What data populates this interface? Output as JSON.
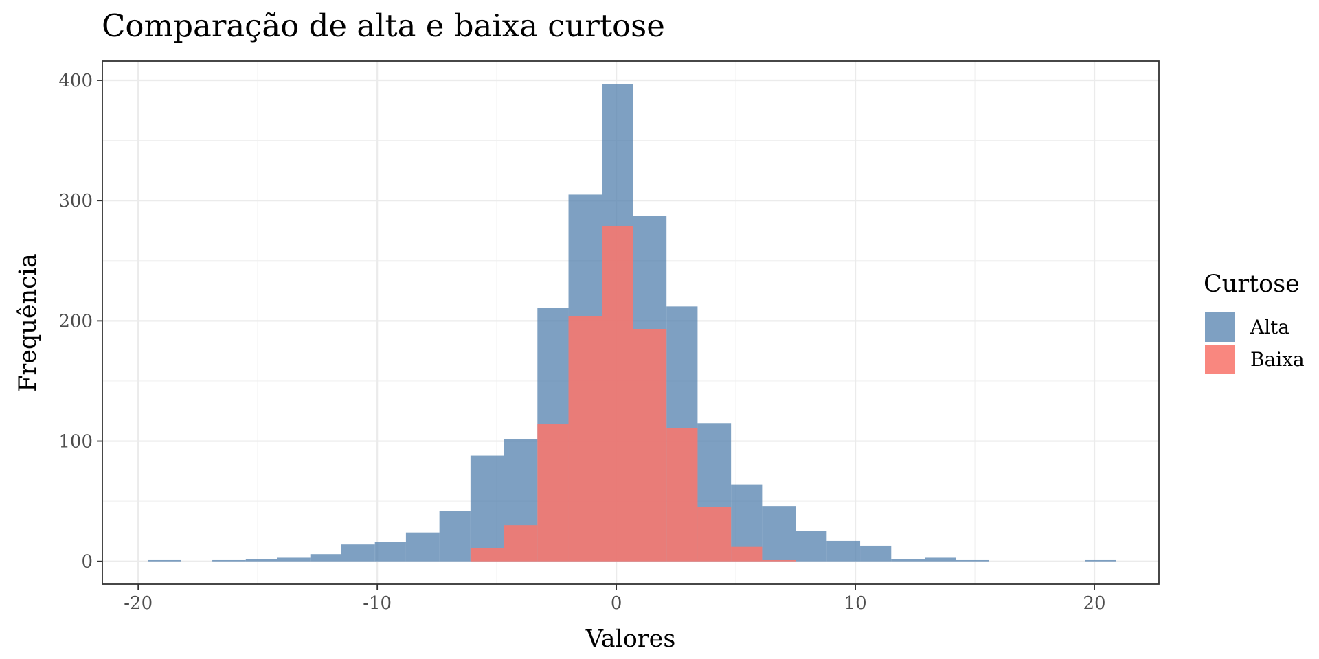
{
  "chart_data": {
    "type": "bar",
    "title": "Comparação de alta e baixa curtose",
    "xlabel": "Valores",
    "ylabel": "Frequência",
    "xlim": [
      -21.5,
      22.7
    ],
    "ylim": [
      -19,
      416
    ],
    "x_ticks": [
      -20,
      -10,
      0,
      10,
      20
    ],
    "x_tick_labels": [
      "-20",
      "-10",
      "0",
      "10",
      "20"
    ],
    "y_ticks": [
      0,
      100,
      200,
      300,
      400
    ],
    "y_tick_labels": [
      "0",
      "100",
      "200",
      "300",
      "400"
    ],
    "grid": true,
    "legend": {
      "title": "Curtose",
      "position": "right",
      "entries": [
        {
          "label": "Alta",
          "color": "#4c7bab"
        },
        {
          "label": "Baixa",
          "color": "#f8766d"
        }
      ]
    },
    "series": [
      {
        "name": "Alta",
        "color": "#4c7bab",
        "opacity": 0.72,
        "bins": [
          {
            "x0": -19.6,
            "x1": -18.2,
            "count": 1
          },
          {
            "x0": -16.9,
            "x1": -15.5,
            "count": 1
          },
          {
            "x0": -15.5,
            "x1": -14.2,
            "count": 2
          },
          {
            "x0": -14.2,
            "x1": -12.8,
            "count": 3
          },
          {
            "x0": -12.8,
            "x1": -11.5,
            "count": 6
          },
          {
            "x0": -11.5,
            "x1": -10.1,
            "count": 14
          },
          {
            "x0": -10.1,
            "x1": -8.8,
            "count": 16
          },
          {
            "x0": -8.8,
            "x1": -7.4,
            "count": 24
          },
          {
            "x0": -7.4,
            "x1": -6.1,
            "count": 42
          },
          {
            "x0": -6.1,
            "x1": -4.7,
            "count": 88
          },
          {
            "x0": -4.7,
            "x1": -3.3,
            "count": 102
          },
          {
            "x0": -3.3,
            "x1": -2.0,
            "count": 211
          },
          {
            "x0": -2.0,
            "x1": -0.6,
            "count": 305
          },
          {
            "x0": -0.6,
            "x1": 0.7,
            "count": 397
          },
          {
            "x0": 0.7,
            "x1": 2.1,
            "count": 287
          },
          {
            "x0": 2.1,
            "x1": 3.4,
            "count": 212
          },
          {
            "x0": 3.4,
            "x1": 4.8,
            "count": 115
          },
          {
            "x0": 4.8,
            "x1": 6.1,
            "count": 64
          },
          {
            "x0": 6.1,
            "x1": 7.5,
            "count": 46
          },
          {
            "x0": 7.5,
            "x1": 8.8,
            "count": 25
          },
          {
            "x0": 8.8,
            "x1": 10.2,
            "count": 17
          },
          {
            "x0": 10.2,
            "x1": 11.5,
            "count": 13
          },
          {
            "x0": 11.5,
            "x1": 12.9,
            "count": 2
          },
          {
            "x0": 12.9,
            "x1": 14.2,
            "count": 3
          },
          {
            "x0": 14.2,
            "x1": 15.6,
            "count": 1
          },
          {
            "x0": 19.6,
            "x1": 20.9,
            "count": 1
          }
        ]
      },
      {
        "name": "Baixa",
        "color": "#f8766d",
        "opacity": 0.88,
        "bins": [
          {
            "x0": -6.1,
            "x1": -4.7,
            "count": 11
          },
          {
            "x0": -4.7,
            "x1": -3.3,
            "count": 30
          },
          {
            "x0": -3.3,
            "x1": -2.0,
            "count": 114
          },
          {
            "x0": -2.0,
            "x1": -0.6,
            "count": 204
          },
          {
            "x0": -0.6,
            "x1": 0.7,
            "count": 279
          },
          {
            "x0": 0.7,
            "x1": 2.1,
            "count": 193
          },
          {
            "x0": 2.1,
            "x1": 3.4,
            "count": 111
          },
          {
            "x0": 3.4,
            "x1": 4.8,
            "count": 45
          },
          {
            "x0": 4.8,
            "x1": 6.1,
            "count": 12
          },
          {
            "x0": 6.1,
            "x1": 7.5,
            "count": 1
          }
        ]
      }
    ]
  }
}
